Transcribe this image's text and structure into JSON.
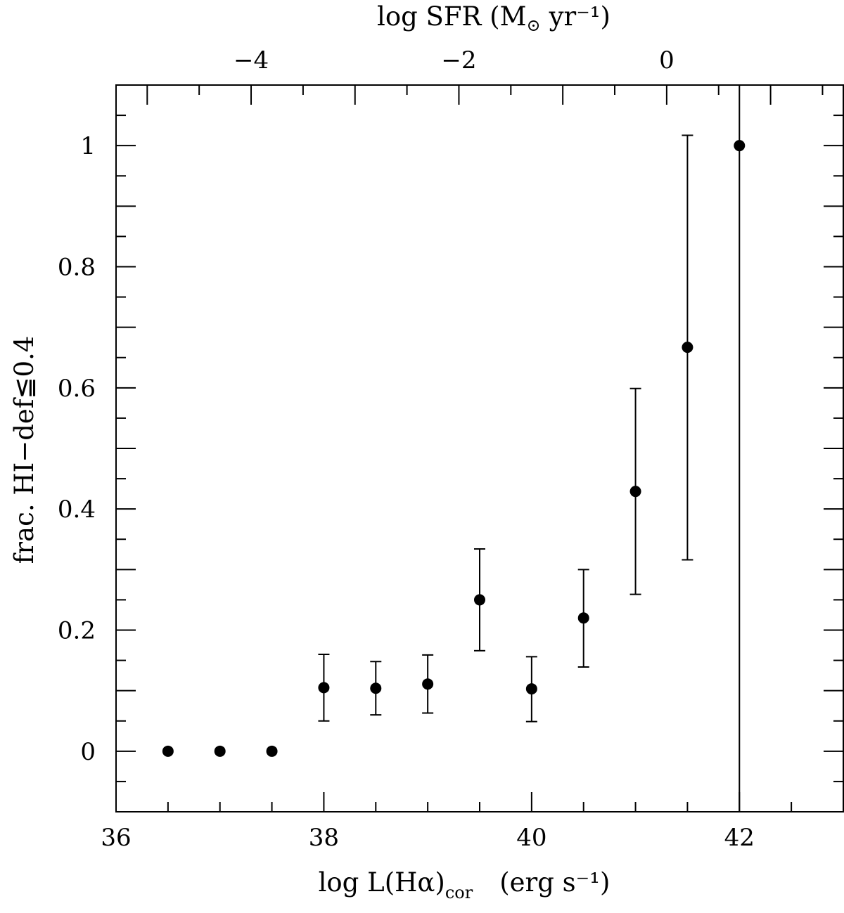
{
  "chart_data": {
    "type": "scatter",
    "x_axis": {
      "label_text": "log L(Hα)",
      "label_subscript": "cor",
      "label_units": "(erg s⁻¹)",
      "range": [
        36,
        43
      ],
      "major_ticks": [
        36,
        38,
        40,
        42
      ],
      "tick_labels": [
        "36",
        "38",
        "40",
        "42"
      ],
      "minor_step": 0.5
    },
    "x_top_axis": {
      "label_text": "log SFR (M",
      "label_sun": "⊙",
      "label_units": "yr⁻¹)",
      "major_ticks": [
        -4,
        -2,
        0
      ],
      "tick_labels": [
        "−4",
        "−2",
        "0"
      ],
      "offset_from_bottom": 41.3,
      "minor_step": 0.5
    },
    "y_axis": {
      "label": "frac. HI−def≦0.4",
      "range": [
        -0.1,
        1.1
      ],
      "major_ticks": [
        0,
        0.2,
        0.4,
        0.6,
        0.8,
        1
      ],
      "tick_labels": [
        "0",
        "0.2",
        "0.4",
        "0.6",
        "0.8",
        "1"
      ],
      "minor_step": 0.05
    },
    "points": [
      {
        "x": 36.5,
        "y": 0.0
      },
      {
        "x": 37.0,
        "y": 0.0
      },
      {
        "x": 37.5,
        "y": 0.0
      },
      {
        "x": 38.0,
        "y": 0.105,
        "err_low": 0.05,
        "err_high": 0.16
      },
      {
        "x": 38.5,
        "y": 0.104,
        "err_low": 0.06,
        "err_high": 0.148
      },
      {
        "x": 39.0,
        "y": 0.111,
        "err_low": 0.063,
        "err_high": 0.159
      },
      {
        "x": 39.5,
        "y": 0.25,
        "err_low": 0.166,
        "err_high": 0.334
      },
      {
        "x": 40.0,
        "y": 0.103,
        "err_low": 0.049,
        "err_high": 0.156
      },
      {
        "x": 40.5,
        "y": 0.22,
        "err_low": 0.139,
        "err_high": 0.3
      },
      {
        "x": 41.0,
        "y": 0.429,
        "err_low": 0.259,
        "err_high": 0.599
      },
      {
        "x": 41.5,
        "y": 0.667,
        "err_low": 0.316,
        "err_high": 1.017
      },
      {
        "x": 42.0,
        "y": 1.0,
        "err_low": -0.1,
        "err_high": 1.1
      }
    ],
    "grid": false,
    "legend": "none"
  }
}
